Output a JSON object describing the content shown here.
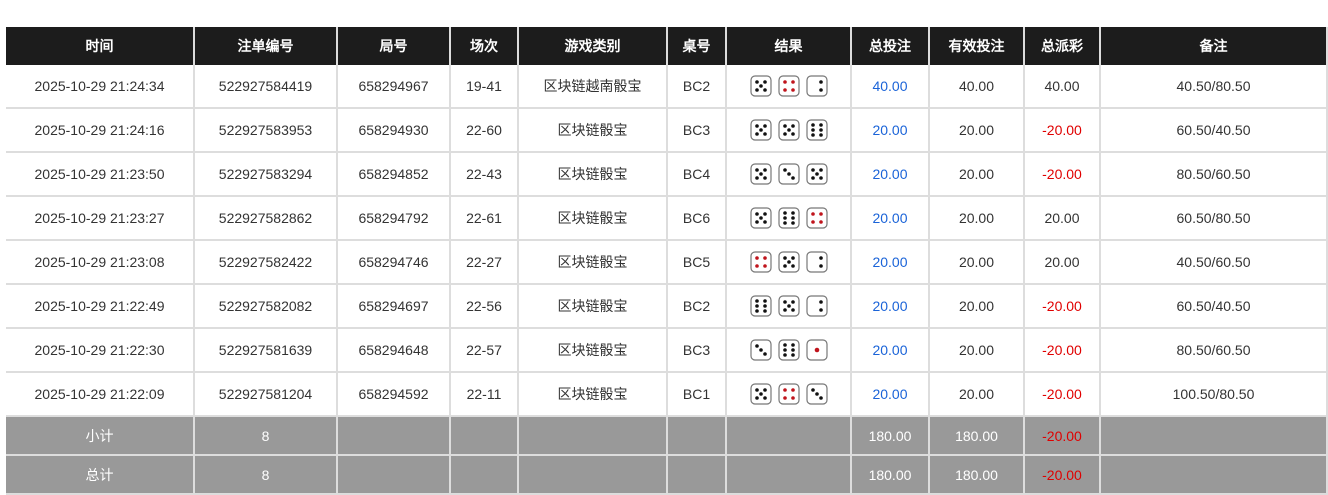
{
  "headers": [
    "时间",
    "注单编号",
    "局号",
    "场次",
    "游戏类别",
    "桌号",
    "结果",
    "总投注",
    "有效投注",
    "总派彩",
    "备注"
  ],
  "rows": [
    {
      "time": "2025-10-29 21:24:34",
      "bet_id": "522927584419",
      "round": "658294967",
      "session": "19-41",
      "game": "区块链越南骰宝",
      "table": "BC2",
      "dice": [
        5,
        4,
        2
      ],
      "total_bet": "40.00",
      "valid_bet": "40.00",
      "payout": "40.00",
      "note": "40.50/80.50"
    },
    {
      "time": "2025-10-29 21:24:16",
      "bet_id": "522927583953",
      "round": "658294930",
      "session": "22-60",
      "game": "区块链骰宝",
      "table": "BC3",
      "dice": [
        5,
        5,
        6
      ],
      "total_bet": "20.00",
      "valid_bet": "20.00",
      "payout": "-20.00",
      "note": "60.50/40.50"
    },
    {
      "time": "2025-10-29 21:23:50",
      "bet_id": "522927583294",
      "round": "658294852",
      "session": "22-43",
      "game": "区块链骰宝",
      "table": "BC4",
      "dice": [
        5,
        3,
        5
      ],
      "total_bet": "20.00",
      "valid_bet": "20.00",
      "payout": "-20.00",
      "note": "80.50/60.50"
    },
    {
      "time": "2025-10-29 21:23:27",
      "bet_id": "522927582862",
      "round": "658294792",
      "session": "22-61",
      "game": "区块链骰宝",
      "table": "BC6",
      "dice": [
        5,
        6,
        4
      ],
      "total_bet": "20.00",
      "valid_bet": "20.00",
      "payout": "20.00",
      "note": "60.50/80.50"
    },
    {
      "time": "2025-10-29 21:23:08",
      "bet_id": "522927582422",
      "round": "658294746",
      "session": "22-27",
      "game": "区块链骰宝",
      "table": "BC5",
      "dice": [
        4,
        5,
        2
      ],
      "total_bet": "20.00",
      "valid_bet": "20.00",
      "payout": "20.00",
      "note": "40.50/60.50"
    },
    {
      "time": "2025-10-29 21:22:49",
      "bet_id": "522927582082",
      "round": "658294697",
      "session": "22-56",
      "game": "区块链骰宝",
      "table": "BC2",
      "dice": [
        6,
        5,
        2
      ],
      "total_bet": "20.00",
      "valid_bet": "20.00",
      "payout": "-20.00",
      "note": "60.50/40.50"
    },
    {
      "time": "2025-10-29 21:22:30",
      "bet_id": "522927581639",
      "round": "658294648",
      "session": "22-57",
      "game": "区块链骰宝",
      "table": "BC3",
      "dice": [
        3,
        6,
        1
      ],
      "total_bet": "20.00",
      "valid_bet": "20.00",
      "payout": "-20.00",
      "note": "80.50/60.50"
    },
    {
      "time": "2025-10-29 21:22:09",
      "bet_id": "522927581204",
      "round": "658294592",
      "session": "22-11",
      "game": "区块链骰宝",
      "table": "BC1",
      "dice": [
        5,
        4,
        3
      ],
      "total_bet": "20.00",
      "valid_bet": "20.00",
      "payout": "-20.00",
      "note": "100.50/80.50"
    }
  ],
  "subtotal": {
    "label": "小计",
    "count": "8",
    "total_bet": "180.00",
    "valid_bet": "180.00",
    "payout": "-20.00"
  },
  "total": {
    "label": "总计",
    "count": "8",
    "total_bet": "180.00",
    "valid_bet": "180.00",
    "payout": "-20.00"
  },
  "colors": {
    "header_bg": "#1c1c1c",
    "bet_link": "#1a63d8",
    "negative": "#e00000",
    "summary_bg": "#999999"
  }
}
